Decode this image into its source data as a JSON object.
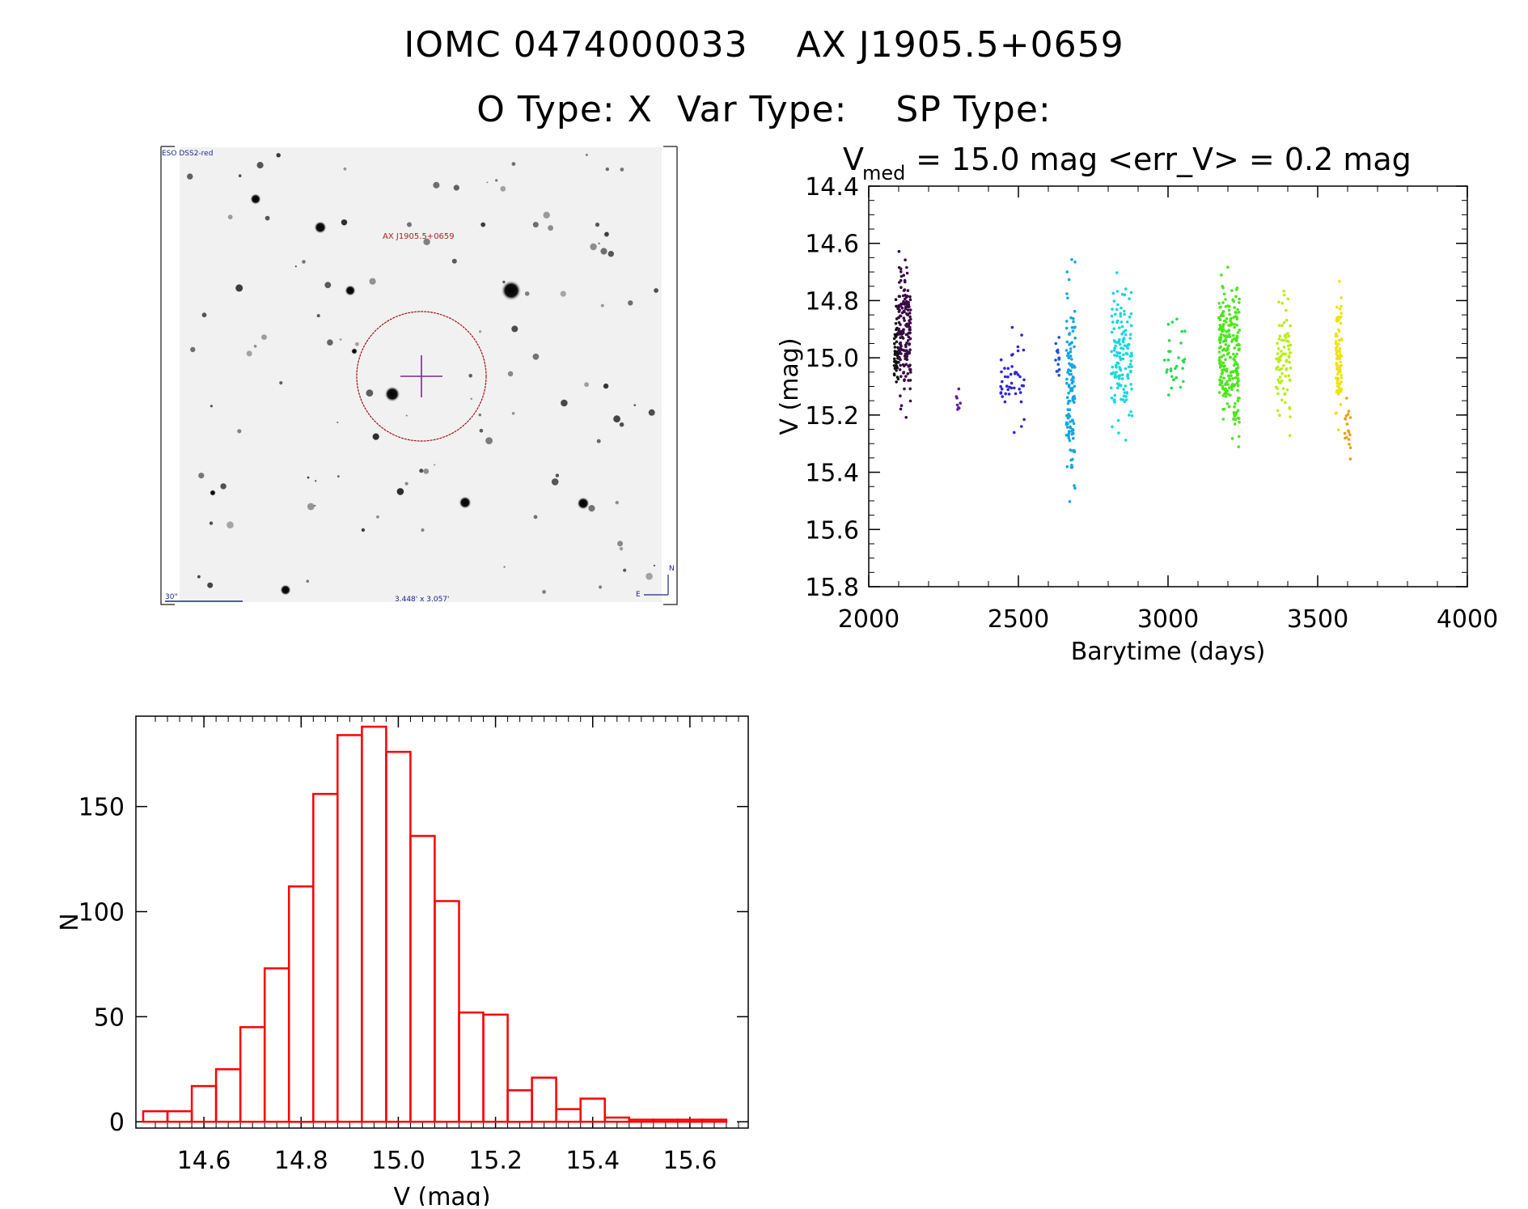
{
  "header": {
    "title_line1": "IOMC 0474000033    AX J1905.5+0659",
    "title_line2": "O Type: X  Var Type:    SP Type:"
  },
  "finder_chart": {
    "survey_label": "ESO DSS2-red",
    "object_label": "AX J1905.5+0659",
    "scale_label": "30\"",
    "field_label": "3.448' x 3.057'",
    "north_label": "N",
    "east_label": "E"
  },
  "light_curve": {
    "title_main": "V",
    "title_sub": "med",
    "title_rest": " = 15.0 mag <err_V> = 0.2 mag"
  },
  "chart_data": [
    {
      "type": "scatter",
      "xlabel": "Barytime (days)",
      "ylabel": "V (mag)",
      "xlim": [
        2000,
        4000
      ],
      "ylim": [
        15.8,
        14.4
      ],
      "y_inverted": true,
      "x_ticks": [
        2000,
        2500,
        3000,
        3500,
        4000
      ],
      "y_ticks": [
        14.4,
        14.6,
        14.8,
        15.0,
        15.2,
        15.4,
        15.6,
        15.8
      ],
      "grid": false,
      "series": [
        {
          "color": "#111111",
          "x_range": [
            2085,
            2100
          ],
          "y_center": 14.95,
          "y_spread": 0.2,
          "count": 45
        },
        {
          "color": "#3a0a45",
          "x_range": [
            2100,
            2140
          ],
          "y_center": 14.9,
          "y_spread": 0.37,
          "count": 170
        },
        {
          "color": "#5c1fa8",
          "x_range": [
            2290,
            2310
          ],
          "y_center": 15.15,
          "y_spread": 0.08,
          "count": 8
        },
        {
          "color": "#3025d6",
          "x_range": [
            2440,
            2520
          ],
          "y_center": 15.05,
          "y_spread": 0.25,
          "count": 45
        },
        {
          "color": "#1f50e6",
          "x_range": [
            2620,
            2640
          ],
          "y_center": 15.0,
          "y_spread": 0.15,
          "count": 14
        },
        {
          "color": "#14a5e6",
          "x_range": [
            2660,
            2690
          ],
          "y_center": 15.1,
          "y_spread": 0.5,
          "count": 120
        },
        {
          "color": "#13d8e0",
          "x_range": [
            2810,
            2880
          ],
          "y_center": 15.0,
          "y_spread": 0.35,
          "count": 140
        },
        {
          "color": "#28d955",
          "x_range": [
            2980,
            3060
          ],
          "y_center": 15.0,
          "y_spread": 0.25,
          "count": 30
        },
        {
          "color": "#4ce61a",
          "x_range": [
            3170,
            3240
          ],
          "y_center": 15.0,
          "y_spread": 0.37,
          "count": 230
        },
        {
          "color": "#b8ee12",
          "x_range": [
            3360,
            3410
          ],
          "y_center": 15.0,
          "y_spread": 0.3,
          "count": 80
        },
        {
          "color": "#f0e20e",
          "x_range": [
            3560,
            3580
          ],
          "y_center": 15.0,
          "y_spread": 0.3,
          "count": 90
        },
        {
          "color": "#e8a116",
          "x_range": [
            3590,
            3610
          ],
          "y_center": 15.25,
          "y_spread": 0.15,
          "count": 18
        }
      ]
    },
    {
      "type": "bar",
      "style": "histogram-steps",
      "xlabel": "V (mag)",
      "ylabel": "N",
      "xlim": [
        14.46,
        15.72
      ],
      "ylim": [
        0,
        190
      ],
      "x_ticks": [
        14.6,
        14.8,
        15.0,
        15.2,
        15.4,
        15.6
      ],
      "y_ticks": [
        0,
        50,
        100,
        150
      ],
      "bin_width": 0.05,
      "bin_starts": [
        14.475,
        14.525,
        14.575,
        14.625,
        14.675,
        14.725,
        14.775,
        14.825,
        14.875,
        14.925,
        14.975,
        15.025,
        15.075,
        15.125,
        15.175,
        15.225,
        15.275,
        15.325,
        15.375,
        15.425,
        15.475,
        15.525,
        15.575,
        15.625
      ],
      "values": [
        5,
        5,
        17,
        25,
        45,
        73,
        112,
        156,
        184,
        188,
        176,
        136,
        105,
        52,
        51,
        15,
        21,
        6,
        11,
        2,
        1,
        1,
        1,
        1
      ],
      "color": "#ff0000"
    }
  ]
}
